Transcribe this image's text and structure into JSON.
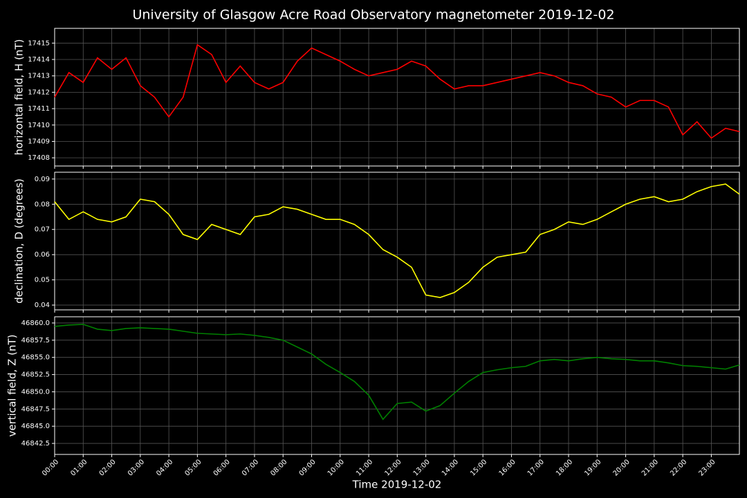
{
  "chart_data": {
    "type": "line",
    "title": "University of Glasgow Acre Road Observatory magnetometer 2019-12-02",
    "x_label": "Time 2019-12-02",
    "grid": true,
    "x": [
      "00:00",
      "00:30",
      "01:00",
      "01:30",
      "02:00",
      "02:30",
      "03:00",
      "03:30",
      "04:00",
      "04:30",
      "05:00",
      "05:30",
      "06:00",
      "06:30",
      "07:00",
      "07:30",
      "08:00",
      "08:30",
      "09:00",
      "09:30",
      "10:00",
      "10:30",
      "11:00",
      "11:30",
      "12:00",
      "12:30",
      "13:00",
      "13:30",
      "14:00",
      "14:30",
      "15:00",
      "15:30",
      "16:00",
      "16:30",
      "17:00",
      "17:30",
      "18:00",
      "18:30",
      "19:00",
      "19:30",
      "20:00",
      "20:30",
      "21:00",
      "21:30",
      "22:00",
      "22:30",
      "23:00",
      "23:30",
      "23:59"
    ],
    "xlim": [
      "00:00",
      "23:59"
    ],
    "xticks": [
      "00:00",
      "01:00",
      "02:00",
      "03:00",
      "04:00",
      "05:00",
      "06:00",
      "07:00",
      "08:00",
      "09:00",
      "10:00",
      "11:00",
      "12:00",
      "13:00",
      "14:00",
      "15:00",
      "16:00",
      "17:00",
      "18:00",
      "19:00",
      "20:00",
      "21:00",
      "22:00",
      "23:00"
    ],
    "panels": [
      {
        "y_label": "horizontal field, H (nT)",
        "color": "#ff0000",
        "ylim": [
          17407.5,
          17415.9
        ],
        "yticks": [
          17408,
          17409,
          17410,
          17411,
          17412,
          17413,
          17414,
          17415
        ],
        "values": [
          17411.7,
          17413.2,
          17412.6,
          17414.1,
          17413.4,
          17414.1,
          17412.4,
          17411.7,
          17410.5,
          17411.7,
          17414.9,
          17414.3,
          17412.6,
          17413.6,
          17412.6,
          17412.2,
          17412.6,
          17413.9,
          17414.7,
          17414.3,
          17413.9,
          17413.4,
          17413.0,
          17413.2,
          17413.4,
          17413.9,
          17413.6,
          17412.8,
          17412.2,
          17412.4,
          17412.4,
          17412.6,
          17412.8,
          17413.0,
          17413.2,
          17413.0,
          17412.6,
          17412.4,
          17411.9,
          17411.7,
          17411.1,
          17411.5,
          17411.5,
          17411.1,
          17409.4,
          17410.2,
          17409.2,
          17409.8,
          17409.6
        ]
      },
      {
        "y_label": "declination, D (degrees)",
        "color": "#ffff00",
        "ylim": [
          0.0381,
          0.0927
        ],
        "yticks": [
          0.04,
          0.05,
          0.06,
          0.07,
          0.08,
          0.09
        ],
        "values": [
          0.081,
          0.074,
          0.077,
          0.074,
          0.073,
          0.075,
          0.082,
          0.081,
          0.076,
          0.068,
          0.066,
          0.072,
          0.07,
          0.068,
          0.075,
          0.076,
          0.079,
          0.078,
          0.076,
          0.074,
          0.074,
          0.072,
          0.068,
          0.062,
          0.059,
          0.055,
          0.044,
          0.043,
          0.045,
          0.049,
          0.055,
          0.059,
          0.06,
          0.061,
          0.068,
          0.07,
          0.073,
          0.072,
          0.074,
          0.077,
          0.08,
          0.082,
          0.083,
          0.081,
          0.082,
          0.085,
          0.087,
          0.088,
          0.084
        ]
      },
      {
        "y_label": "vertical field, Z (nT)",
        "color": "#008000",
        "ylim": [
          46840.9,
          46860.9
        ],
        "yticks": [
          {
            "value": 46842.5,
            "label": "46842.5"
          },
          {
            "value": 46845,
            "label": "46845.0"
          },
          {
            "value": 46847.5,
            "label": "46847.5"
          },
          {
            "value": 46850,
            "label": "46850.0"
          },
          {
            "value": 46852.5,
            "label": "46852.5"
          },
          {
            "value": 46855,
            "label": "46855.0"
          },
          {
            "value": 46857.5,
            "label": "46857.5"
          },
          {
            "value": 46860,
            "label": "46860.0"
          }
        ],
        "values": [
          46859.5,
          46859.7,
          46859.8,
          46859.1,
          46858.9,
          46859.2,
          46859.3,
          46859.2,
          46859.1,
          46858.8,
          46858.5,
          46858.4,
          46858.3,
          46858.4,
          46858.2,
          46857.9,
          46857.5,
          46856.5,
          46855.5,
          46854.0,
          46852.8,
          46851.5,
          46849.5,
          46846.0,
          46848.3,
          46848.5,
          46847.2,
          46848.0,
          46849.8,
          46851.5,
          46852.8,
          46853.2,
          46853.5,
          46853.7,
          46854.5,
          46854.7,
          46854.5,
          46854.8,
          46855.0,
          46854.8,
          46854.7,
          46854.5,
          46854.5,
          46854.2,
          46853.8,
          46853.7,
          46853.5,
          46853.3,
          46853.9
        ]
      }
    ]
  }
}
